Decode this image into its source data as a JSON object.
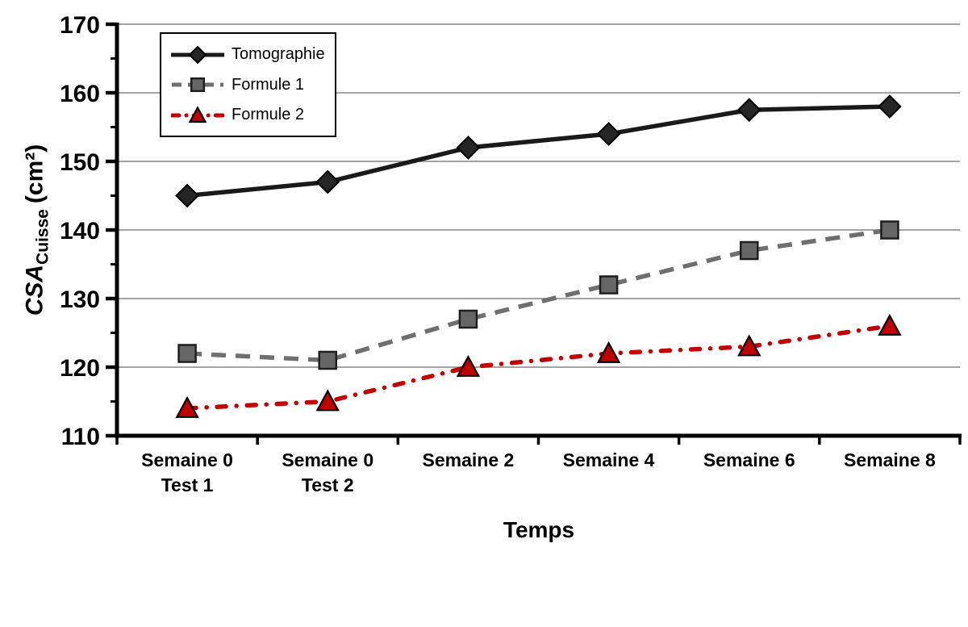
{
  "chart_data": {
    "type": "line",
    "title": "",
    "xlabel": "Temps",
    "ylabel": {
      "main": "CSA",
      "sub": "Cuisse",
      "unit": "(cm²)"
    },
    "ylim": [
      110,
      170
    ],
    "yticks": [
      110,
      120,
      130,
      140,
      150,
      160,
      170
    ],
    "ytick_minor_step": 5,
    "grid": "horizontal-major",
    "legend_position": "inside-top-left",
    "categories": [
      [
        "Semaine 0",
        "Test 1"
      ],
      [
        "Semaine 0",
        "Test 2"
      ],
      [
        "Semaine 2"
      ],
      [
        "Semaine 4"
      ],
      [
        "Semaine 6"
      ],
      [
        "Semaine 8"
      ]
    ],
    "series": [
      {
        "name": "Tomographie",
        "values": [
          145,
          147,
          152,
          154,
          157.5,
          158
        ],
        "color": "#1a1a1a",
        "line_style": "solid",
        "marker": "diamond",
        "marker_fill": "#262626",
        "marker_stroke": "#000000"
      },
      {
        "name": "Formule 1",
        "values": [
          122,
          121,
          127,
          132,
          137,
          140
        ],
        "color": "#6f6f6f",
        "line_style": "dashed",
        "marker": "square",
        "marker_fill": "#666666",
        "marker_stroke": "#1f1f1f"
      },
      {
        "name": "Formule 2",
        "values": [
          114,
          115,
          120,
          122,
          123,
          126
        ],
        "color": "#c30000",
        "line_style": "dash-dot",
        "marker": "triangle",
        "marker_fill": "#c00000",
        "marker_stroke": "#000000"
      }
    ],
    "colors": {
      "gridline": "#a3a3a3",
      "axis": "#000000",
      "text": "#000000",
      "background": "#ffffff"
    }
  }
}
